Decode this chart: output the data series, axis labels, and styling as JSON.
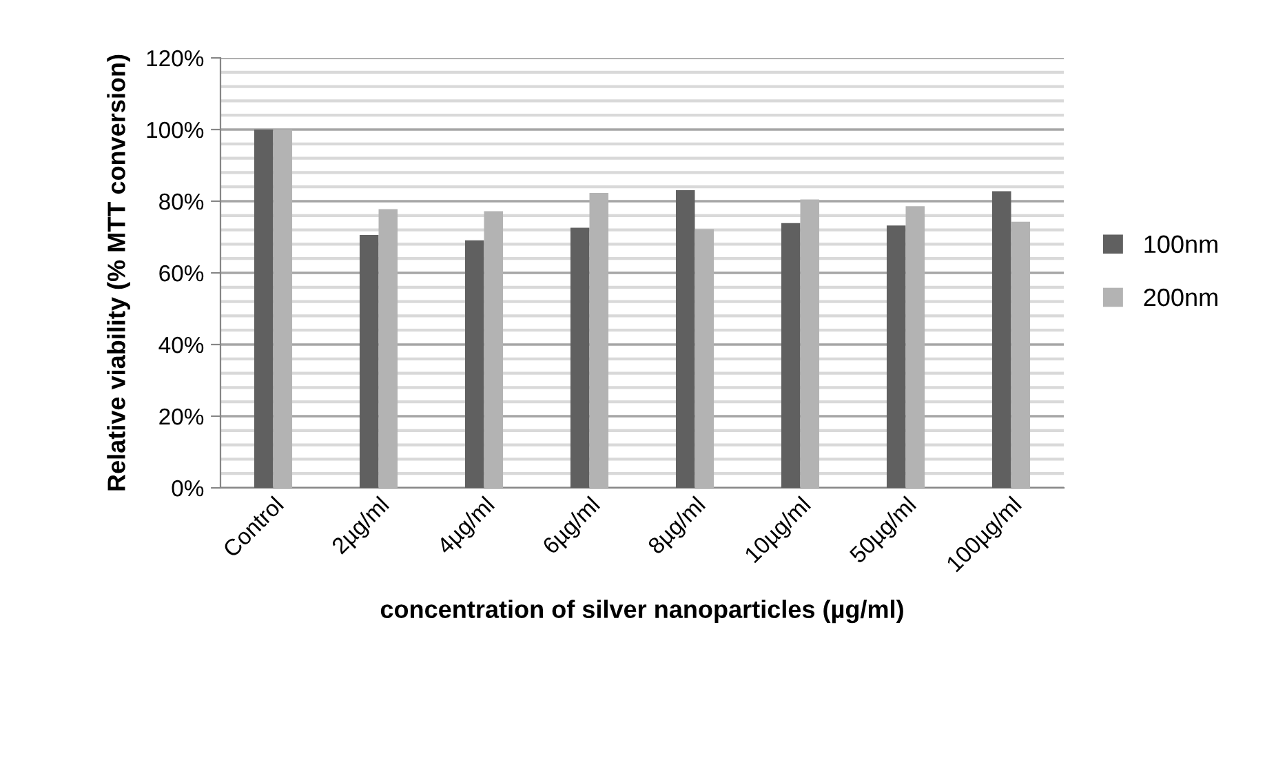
{
  "chart_data": {
    "type": "bar",
    "xlabel": "concentration of silver nanoparticles (µg/ml)",
    "ylabel": "Relative viability (% MTT conversion)",
    "categories": [
      "Control",
      "2µg/ml",
      "4µg/ml",
      "6µg/ml",
      "8µg/ml",
      "10µg/ml",
      "50µg/ml",
      "100µg/ml"
    ],
    "series": [
      {
        "name": "100nm",
        "color": "#606060",
        "values": [
          100,
          70.6,
          69.1,
          72.6,
          83.1,
          73.9,
          73.2,
          82.8
        ]
      },
      {
        "name": "200nm",
        "color": "#b3b3b3",
        "values": [
          100,
          77.8,
          77.2,
          82.3,
          72.2,
          80.5,
          78.6,
          74.3
        ]
      }
    ],
    "ylim": [
      0,
      120
    ],
    "yticks": [
      {
        "value": 0,
        "label": "0%"
      },
      {
        "value": 20,
        "label": "20%"
      },
      {
        "value": 40,
        "label": "40%"
      },
      {
        "value": 60,
        "label": "60%"
      },
      {
        "value": 80,
        "label": "80%"
      },
      {
        "value": 100,
        "label": "100%"
      },
      {
        "value": 120,
        "label": "120%"
      }
    ],
    "grid": "y",
    "legend": "right"
  }
}
